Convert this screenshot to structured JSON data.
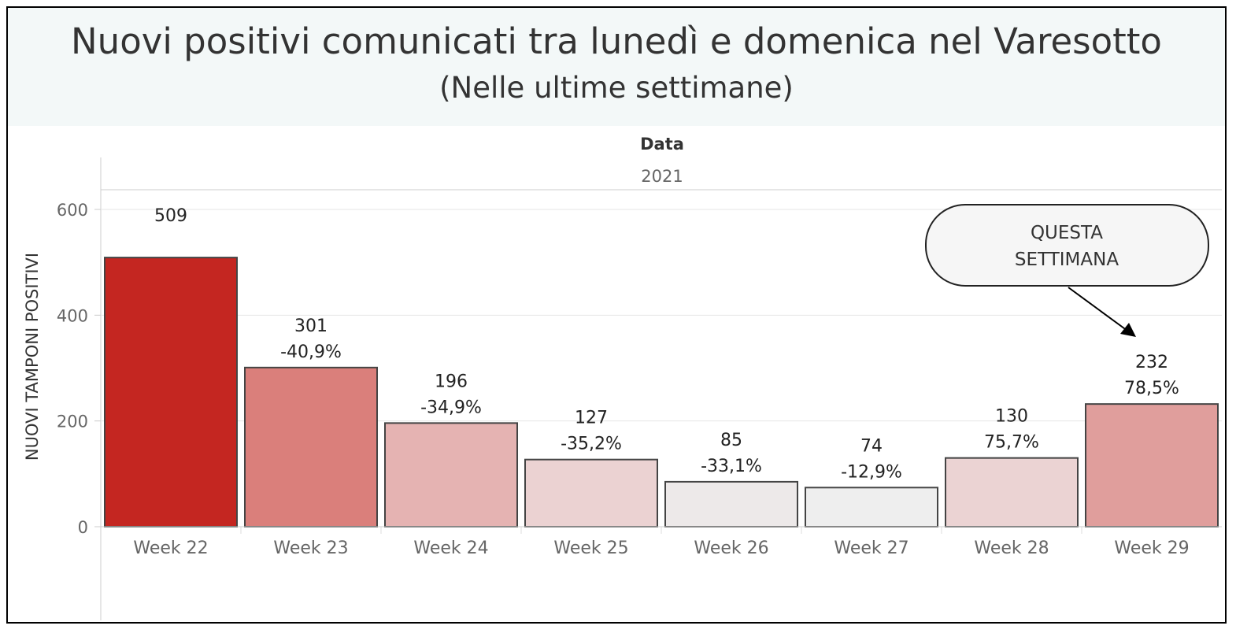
{
  "chart_data": {
    "type": "bar",
    "title": "Nuovi positivi comunicati tra lunedì e domenica nel Varesotto",
    "subtitle": "(Nelle ultime settimane)",
    "header_field": "Data",
    "header_value": "2021",
    "ylabel": "NUOVI TAMPONI POSITIVI",
    "ylim": [
      0,
      600
    ],
    "yticks": [
      "0",
      "200",
      "400",
      "600"
    ],
    "categories": [
      "Week 22",
      "Week 23",
      "Week 24",
      "Week 25",
      "Week 26",
      "Week 27",
      "Week 28",
      "Week 29"
    ],
    "values": [
      509,
      301,
      196,
      127,
      85,
      74,
      130,
      232
    ],
    "value_labels": [
      "509",
      "301",
      "196",
      "127",
      "85",
      "74",
      "130",
      "232"
    ],
    "change_labels": [
      "",
      "-40,9%",
      "-34,9%",
      "-35,2%",
      "-33,1%",
      "-12,9%",
      "75,7%",
      "78,5%"
    ],
    "bar_colors": [
      "#c42621",
      "#da7f7b",
      "#e5b3b2",
      "#ebd2d2",
      "#ede9e9",
      "#eeeeee",
      "#ebd3d3",
      "#e09e9c"
    ],
    "annotation": {
      "lines": [
        "QUESTA",
        "SETTIMANA"
      ],
      "target": "Week 29"
    },
    "grid": true
  }
}
